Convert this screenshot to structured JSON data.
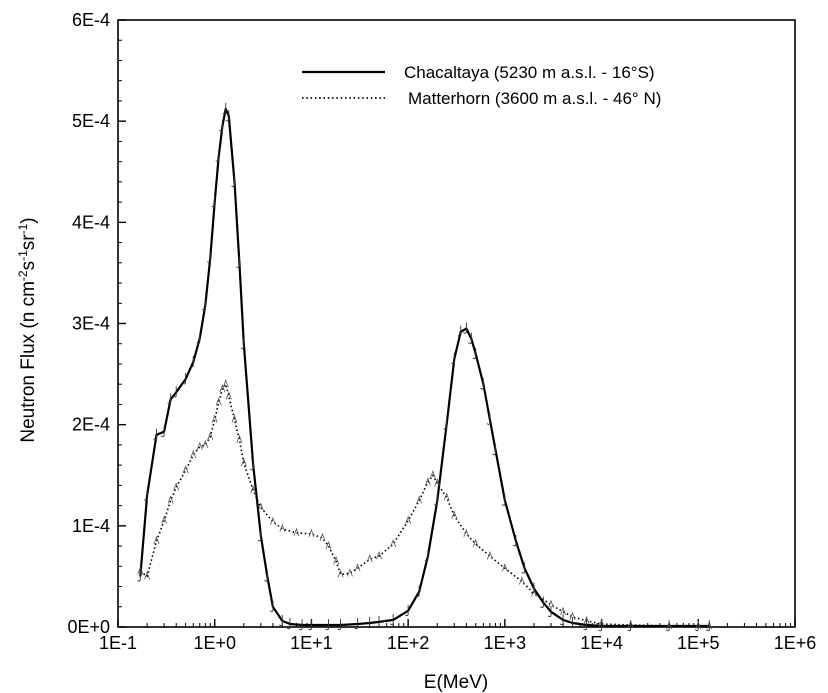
{
  "chart_data": {
    "type": "line",
    "title": "",
    "xlabel": "E(MeV)",
    "ylabel": {
      "base": "Neutron Flux (n cm",
      "exp1": "-2",
      "mid1": "s",
      "exp2": "-1",
      "mid2": "sr",
      "exp3": "-1",
      "end": ")"
    },
    "x_scale": "log",
    "xlim": [
      0.1,
      1000000
    ],
    "ylim": [
      0,
      0.0006
    ],
    "x_ticks": [
      {
        "value": 0.1,
        "label": "1E-1"
      },
      {
        "value": 1,
        "label": "1E+0"
      },
      {
        "value": 10,
        "label": "1E+1"
      },
      {
        "value": 100,
        "label": "1E+2"
      },
      {
        "value": 1000,
        "label": "1E+3"
      },
      {
        "value": 10000,
        "label": "1E+4"
      },
      {
        "value": 100000,
        "label": "1E+5"
      },
      {
        "value": 1000000,
        "label": "1E+6"
      }
    ],
    "y_ticks": [
      {
        "value": 0,
        "label": "0E+0"
      },
      {
        "value": 0.0001,
        "label": "1E-4"
      },
      {
        "value": 0.0002,
        "label": "2E-4"
      },
      {
        "value": 0.0003,
        "label": "3E-4"
      },
      {
        "value": 0.0004,
        "label": "4E-4"
      },
      {
        "value": 0.0005,
        "label": "5E-4"
      },
      {
        "value": 0.0006,
        "label": "6E-4"
      }
    ],
    "grid": false,
    "legend_position": "top-right",
    "series": [
      {
        "name": "Chacaltaya (5230 m a.s.l. - 16°S)",
        "style": "solid",
        "x": [
          0.17,
          0.2,
          0.25,
          0.3,
          0.35,
          0.4,
          0.5,
          0.6,
          0.7,
          0.8,
          0.9,
          1.0,
          1.1,
          1.2,
          1.3,
          1.4,
          1.6,
          1.8,
          2.0,
          2.5,
          3.0,
          3.5,
          4.0,
          5.0,
          6.0,
          8.0,
          10,
          15,
          20,
          30,
          40,
          50,
          70,
          100,
          130,
          160,
          200,
          250,
          300,
          350,
          400,
          450,
          500,
          600,
          700,
          800,
          1000,
          1300,
          1600,
          2000,
          2500,
          3000,
          4000,
          5000,
          7000,
          10000,
          20000,
          50000,
          100000,
          130000
        ],
        "values": [
          5e-05,
          0.00013,
          0.00019,
          0.000193,
          0.000225,
          0.000232,
          0.000245,
          0.000262,
          0.000285,
          0.000318,
          0.000365,
          0.00042,
          0.000465,
          0.000495,
          0.000512,
          0.000505,
          0.00044,
          0.00036,
          0.00028,
          0.00016,
          9e-05,
          5e-05,
          2e-05,
          6e-06,
          3e-06,
          2e-06,
          2e-06,
          2e-06,
          2e-06,
          3e-06,
          4e-06,
          5e-06,
          7e-06,
          1.6e-05,
          3.5e-05,
          7e-05,
          0.000125,
          0.0002,
          0.000265,
          0.000292,
          0.000295,
          0.000285,
          0.00027,
          0.00024,
          0.000205,
          0.000175,
          0.000125,
          8.5e-05,
          5.8e-05,
          3.8e-05,
          2.4e-05,
          1.5e-05,
          7e-06,
          4e-06,
          2e-06,
          1e-06,
          1e-06,
          1e-06,
          1e-06,
          1e-06
        ]
      },
      {
        "name": "Matterhorn (3600 m a.s.l. - 46° N)",
        "style": "dotted",
        "x": [
          0.17,
          0.2,
          0.25,
          0.3,
          0.35,
          0.4,
          0.5,
          0.6,
          0.7,
          0.8,
          0.9,
          1.0,
          1.1,
          1.2,
          1.3,
          1.4,
          1.6,
          1.8,
          2.0,
          2.5,
          3.0,
          4.0,
          5.0,
          7.0,
          10,
          13,
          15,
          18,
          20,
          25,
          30,
          40,
          50,
          70,
          100,
          130,
          160,
          180,
          200,
          250,
          300,
          400,
          500,
          700,
          1000,
          1500,
          2000,
          3000,
          4000,
          5000,
          7000,
          10000,
          20000,
          50000,
          100000,
          130000
        ],
        "values": [
          5.5e-05,
          5e-05,
          8.5e-05,
          0.000105,
          0.000125,
          0.000138,
          0.000155,
          0.00017,
          0.000178,
          0.00018,
          0.000188,
          0.000205,
          0.000222,
          0.000235,
          0.00024,
          0.000228,
          0.000205,
          0.000185,
          0.000162,
          0.000135,
          0.000118,
          0.000104,
          9.7e-05,
          9.3e-05,
          9.2e-05,
          8.8e-05,
          8e-05,
          6.5e-05,
          5.2e-05,
          5.3e-05,
          5.8e-05,
          6.7e-05,
          7e-05,
          8.2e-05,
          0.000105,
          0.000125,
          0.000143,
          0.00015,
          0.000142,
          0.000128,
          0.00011,
          9.2e-05,
          8.2e-05,
          7e-05,
          5.8e-05,
          4.5e-05,
          3.3e-05,
          2.2e-05,
          1.5e-05,
          1e-05,
          6e-06,
          3e-06,
          2e-06,
          1e-06,
          1e-06,
          1e-06
        ]
      }
    ]
  }
}
